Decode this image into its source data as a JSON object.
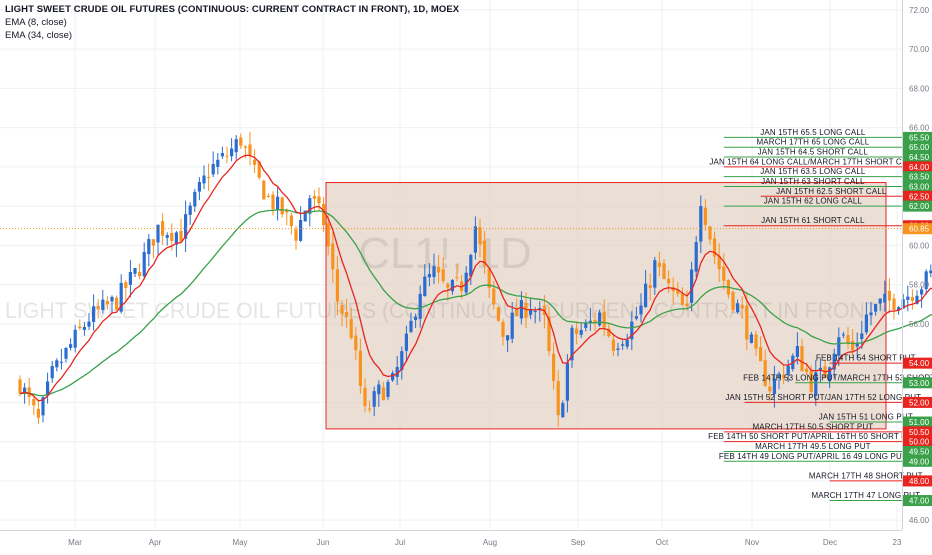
{
  "header": {
    "title": "LIGHT SWEET CRUDE OIL FUTURES (CONTINUOUS: CURRENT CONTRACT IN FRONT), 1D, MOEX",
    "study1": "EMA (8, close)",
    "study2": "EMA (34, close)"
  },
  "watermark": {
    "symbol": "CL1!, 1D",
    "description": "LIGHT SWEET CRUDE OIL FUTURES (CONTINUOUS: CURRENT CONTRACT IN FRONT)"
  },
  "colors": {
    "up": "#2b6cd0",
    "down": "#f7931e",
    "ema_fast": "#e8241f",
    "ema_slow": "#3aa14a",
    "box_fill": "#e4d3c6",
    "box_border": "#e8241f",
    "call_line": "#3aa14a",
    "put_line": "#e8241f",
    "last_price": "#f7931e",
    "grid": "#eef0f3"
  },
  "chart_data": {
    "type": "candlestick",
    "interval": "1D",
    "x_axis_labels": [
      "Mar",
      "Apr",
      "May",
      "Jun",
      "Jul",
      "Aug",
      "Sep",
      "Oct",
      "Nov",
      "Dec",
      "23"
    ],
    "ylim": [
      45.5,
      72.5
    ],
    "y_ticks": [
      46.0,
      48.0,
      50.0,
      52.0,
      54.0,
      56.0,
      58.0,
      60.0,
      62.0,
      64.0,
      66.0,
      68.0,
      70.0,
      72.0
    ],
    "close_path": [
      [
        0,
        53.0
      ],
      [
        8,
        51.0
      ],
      [
        14,
        53.4
      ],
      [
        22,
        54.9
      ],
      [
        30,
        56.3
      ],
      [
        42,
        57.2
      ],
      [
        52,
        58.9
      ],
      [
        60,
        60.9
      ],
      [
        70,
        60.6
      ],
      [
        76,
        62.3
      ],
      [
        82,
        63.8
      ],
      [
        90,
        64.6
      ],
      [
        96,
        65.4
      ],
      [
        102,
        63.6
      ],
      [
        108,
        62.4
      ],
      [
        114,
        61.7
      ],
      [
        120,
        60.6
      ],
      [
        126,
        62.5
      ],
      [
        132,
        61.2
      ],
      [
        138,
        57.2
      ],
      [
        144,
        55.6
      ],
      [
        150,
        51.4
      ],
      [
        156,
        52.5
      ],
      [
        162,
        53.0
      ],
      [
        168,
        55.0
      ],
      [
        174,
        57.8
      ],
      [
        180,
        58.6
      ],
      [
        186,
        57.6
      ],
      [
        192,
        58.0
      ],
      [
        198,
        61.0
      ],
      [
        204,
        57.5
      ],
      [
        210,
        55.5
      ],
      [
        216,
        56.5
      ],
      [
        222,
        57.0
      ],
      [
        228,
        56.1
      ],
      [
        234,
        51.0
      ],
      [
        240,
        55.4
      ],
      [
        246,
        55.8
      ],
      [
        252,
        56.5
      ],
      [
        258,
        55.0
      ],
      [
        264,
        55.6
      ],
      [
        270,
        56.8
      ],
      [
        276,
        59.0
      ],
      [
        282,
        57.8
      ],
      [
        290,
        56.5
      ],
      [
        296,
        62.5
      ],
      [
        302,
        59.5
      ],
      [
        308,
        57.6
      ],
      [
        314,
        56.5
      ],
      [
        320,
        54.2
      ],
      [
        326,
        52.8
      ],
      [
        332,
        53.6
      ],
      [
        338,
        54.5
      ],
      [
        344,
        53.0
      ],
      [
        350,
        53.5
      ],
      [
        356,
        55.6
      ],
      [
        362,
        54.6
      ],
      [
        368,
        56.4
      ],
      [
        374,
        57.0
      ],
      [
        380,
        57.2
      ],
      [
        386,
        57.5
      ],
      [
        392,
        58.0
      ],
      [
        396,
        58.5
      ],
      [
        400,
        56.5
      ],
      [
        406,
        59.3
      ],
      [
        412,
        59.9
      ],
      [
        416,
        61.2
      ]
    ],
    "last_price": 60.85,
    "series": [
      {
        "name": "EMA (8, close)"
      },
      {
        "name": "EMA (34, close)"
      }
    ],
    "range_box": {
      "y_from": 50.65,
      "y_to": 63.2
    },
    "annotations": [
      {
        "label": "JAN 15TH 65.5 LONG CALL",
        "price": 65.5,
        "side": "call",
        "x_from": 306
      },
      {
        "label": "MARCH 17TH 65 LONG CALL",
        "price": 65.0,
        "side": "call",
        "x_from": 306
      },
      {
        "label": "JAN 15TH 64.5 SHORT CALL",
        "price": 64.5,
        "side": "call",
        "x_from": 306
      },
      {
        "label": "JAN 15TH 64 LONG CALL/MARCH 17TH SHORT CALL",
        "price": 64.0,
        "side": "put",
        "x_from": 306
      },
      {
        "label": "JAN 15TH 63.5 LONG CALL",
        "price": 63.5,
        "side": "call",
        "x_from": 306
      },
      {
        "label": "JAN 15TH 63 SHORT CALL",
        "price": 63.0,
        "side": "call",
        "x_from": 306
      },
      {
        "label": "JAN 15TH 62.5 SHORT CALL",
        "price": 62.5,
        "side": "put",
        "x_from": 322
      },
      {
        "label": "JAN 15TH 62 LONG CALL",
        "price": 62.0,
        "side": "call",
        "x_from": 306
      },
      {
        "label": "JAN 15TH 61 SHORT CALL",
        "price": 61.0,
        "side": "put",
        "x_from": 306
      },
      {
        "label": "FEB 14TH 54 SHORT PUT",
        "price": 54.0,
        "side": "put",
        "x_from": 352
      },
      {
        "label": "FEB 14TH 53 LONG PUT/MARCH 17TH 53 SHORT PUT",
        "price": 53.0,
        "side": "call",
        "x_from": 337
      },
      {
        "label": "JAN 15TH 52 SHORT PUT/JAN 17TH 52 LONG PUT",
        "price": 52.0,
        "side": "put",
        "x_from": 315
      },
      {
        "label": "JAN 15TH 51 LONG PUT",
        "price": 51.0,
        "side": "call",
        "x_from": 352
      },
      {
        "label": "MARCH 17TH 50.5 SHORT PUT",
        "price": 50.5,
        "side": "put",
        "x_from": 306
      },
      {
        "label": "FEB 14TH 50 SHORT PUT/APRIL 16TH 50 SHORT PUT",
        "price": 50.0,
        "side": "put",
        "x_from": 306
      },
      {
        "label": "MARCH 17TH 49.5 LONG PUT",
        "price": 49.5,
        "side": "call",
        "x_from": 306
      },
      {
        "label": "FEB 14TH 49 LONG PUT/APRIL 16 49 LONG PUT",
        "price": 49.0,
        "side": "call",
        "x_from": 306
      },
      {
        "label": "MARCH 17TH 48 SHORT PUT",
        "price": 48.0,
        "side": "put",
        "x_from": 352
      },
      {
        "label": "MARCH 17TH 47 LONG PUT",
        "price": 47.0,
        "side": "call",
        "x_from": 352
      }
    ]
  }
}
